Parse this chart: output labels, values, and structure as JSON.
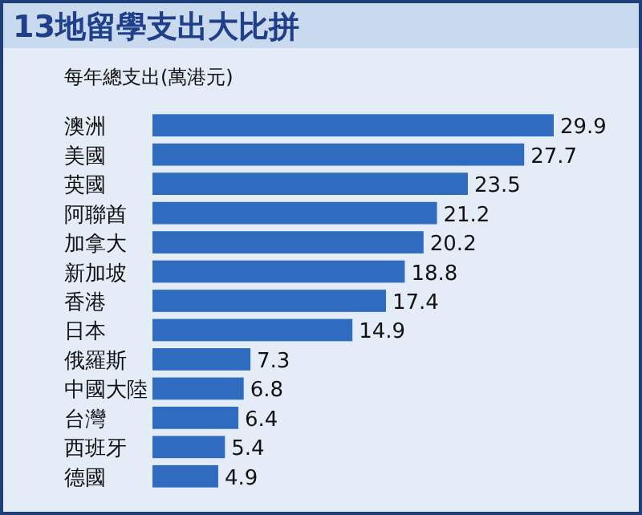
{
  "chart_data": {
    "type": "bar",
    "orientation": "horizontal",
    "title": "13地留學支出大比拼",
    "subtitle": "每年總支出(萬港元)",
    "categories": [
      "澳洲",
      "美國",
      "英國",
      "阿聯酋",
      "加拿大",
      "新加坡",
      "香港",
      "日本",
      "俄羅斯",
      "中國大陸",
      "台灣",
      "西班牙",
      "德國"
    ],
    "values": [
      29.9,
      27.7,
      23.5,
      21.2,
      20.2,
      18.8,
      17.4,
      14.9,
      7.3,
      6.8,
      6.4,
      5.4,
      4.9
    ],
    "color": "#2f6cc0",
    "data_labels": true
  }
}
